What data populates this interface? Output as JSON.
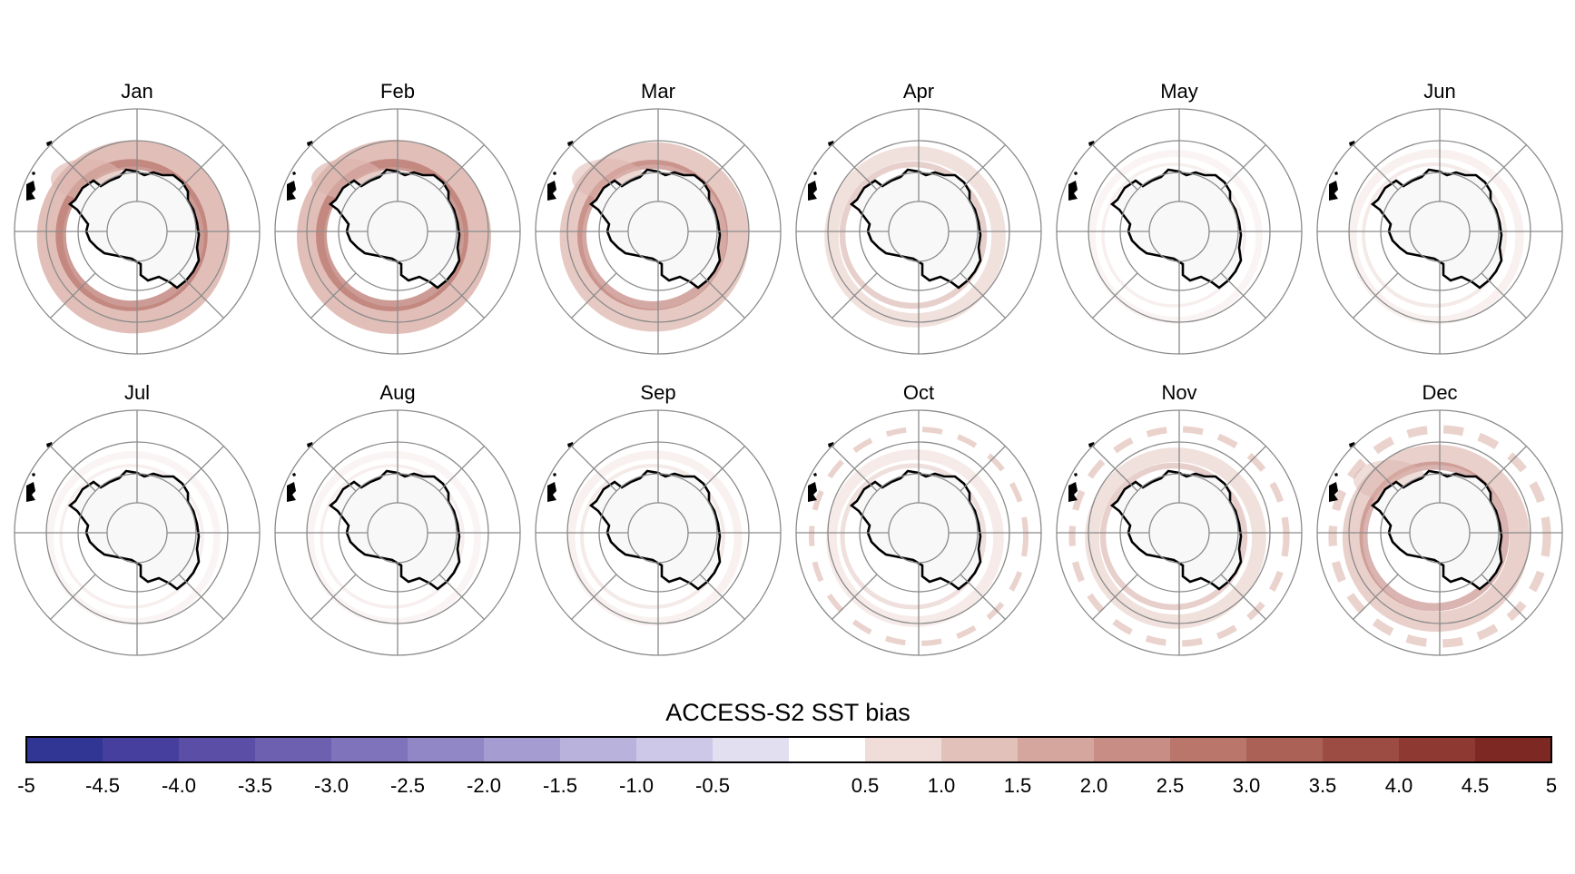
{
  "months": [
    "Jan",
    "Feb",
    "Mar",
    "Apr",
    "May",
    "Jun",
    "Jul",
    "Aug",
    "Sep",
    "Oct",
    "Nov",
    "Dec"
  ],
  "colorbar": {
    "title": "ACCESS-S2 SST bias",
    "tick_labels": [
      "-5",
      "-4.5",
      "-4.0",
      "-3.5",
      "-3.0",
      "-2.5",
      "-2.0",
      "-1.5",
      "-1.0",
      "-0.5",
      "0.5",
      "1.0",
      "1.5",
      "2.0",
      "2.5",
      "3.0",
      "3.5",
      "4.0",
      "4.5",
      "5"
    ],
    "bins": [
      {
        "from": -5.0,
        "to": -4.5,
        "color": "#313695"
      },
      {
        "from": -4.5,
        "to": -4.0,
        "color": "#473f9d"
      },
      {
        "from": -4.0,
        "to": -3.5,
        "color": "#5b4ea7"
      },
      {
        "from": -3.5,
        "to": -3.0,
        "color": "#6d60b1"
      },
      {
        "from": -3.0,
        "to": -2.5,
        "color": "#7f73bb"
      },
      {
        "from": -2.5,
        "to": -2.0,
        "color": "#9187c6"
      },
      {
        "from": -2.0,
        "to": -1.5,
        "color": "#a59cd1"
      },
      {
        "from": -1.5,
        "to": -1.0,
        "color": "#b9b2dc"
      },
      {
        "from": -1.0,
        "to": -0.5,
        "color": "#cdc8e7"
      },
      {
        "from": -0.5,
        "to": 0.0,
        "color": "#e2dff1"
      },
      {
        "from": 0.0,
        "to": 0.5,
        "color": "#ffffff"
      },
      {
        "from": 0.5,
        "to": 1.0,
        "color": "#f0dcd8"
      },
      {
        "from": 1.0,
        "to": 1.5,
        "color": "#e3c1bb"
      },
      {
        "from": 1.5,
        "to": 2.0,
        "color": "#d5a69e"
      },
      {
        "from": 2.0,
        "to": 2.5,
        "color": "#c88d84"
      },
      {
        "from": 2.5,
        "to": 3.0,
        "color": "#bb766c"
      },
      {
        "from": 3.0,
        "to": 3.5,
        "color": "#ac6157"
      },
      {
        "from": 3.5,
        "to": 4.0,
        "color": "#9d4c44"
      },
      {
        "from": 4.0,
        "to": 4.5,
        "color": "#8e3a32"
      },
      {
        "from": 4.5,
        "to": 5.0,
        "color": "#7e2823"
      }
    ]
  },
  "colors": {
    "grid": "#8a8a8a",
    "continent_fill": "#f8f8f8",
    "coastline": "#000000",
    "warm_bias": "#dcb4ac",
    "strong_warm_bias": "#b77068"
  },
  "bias_intensity_by_month": [
    0.95,
    1.0,
    0.8,
    0.45,
    0.15,
    0.2,
    0.15,
    0.15,
    0.2,
    0.3,
    0.45,
    0.7
  ]
}
